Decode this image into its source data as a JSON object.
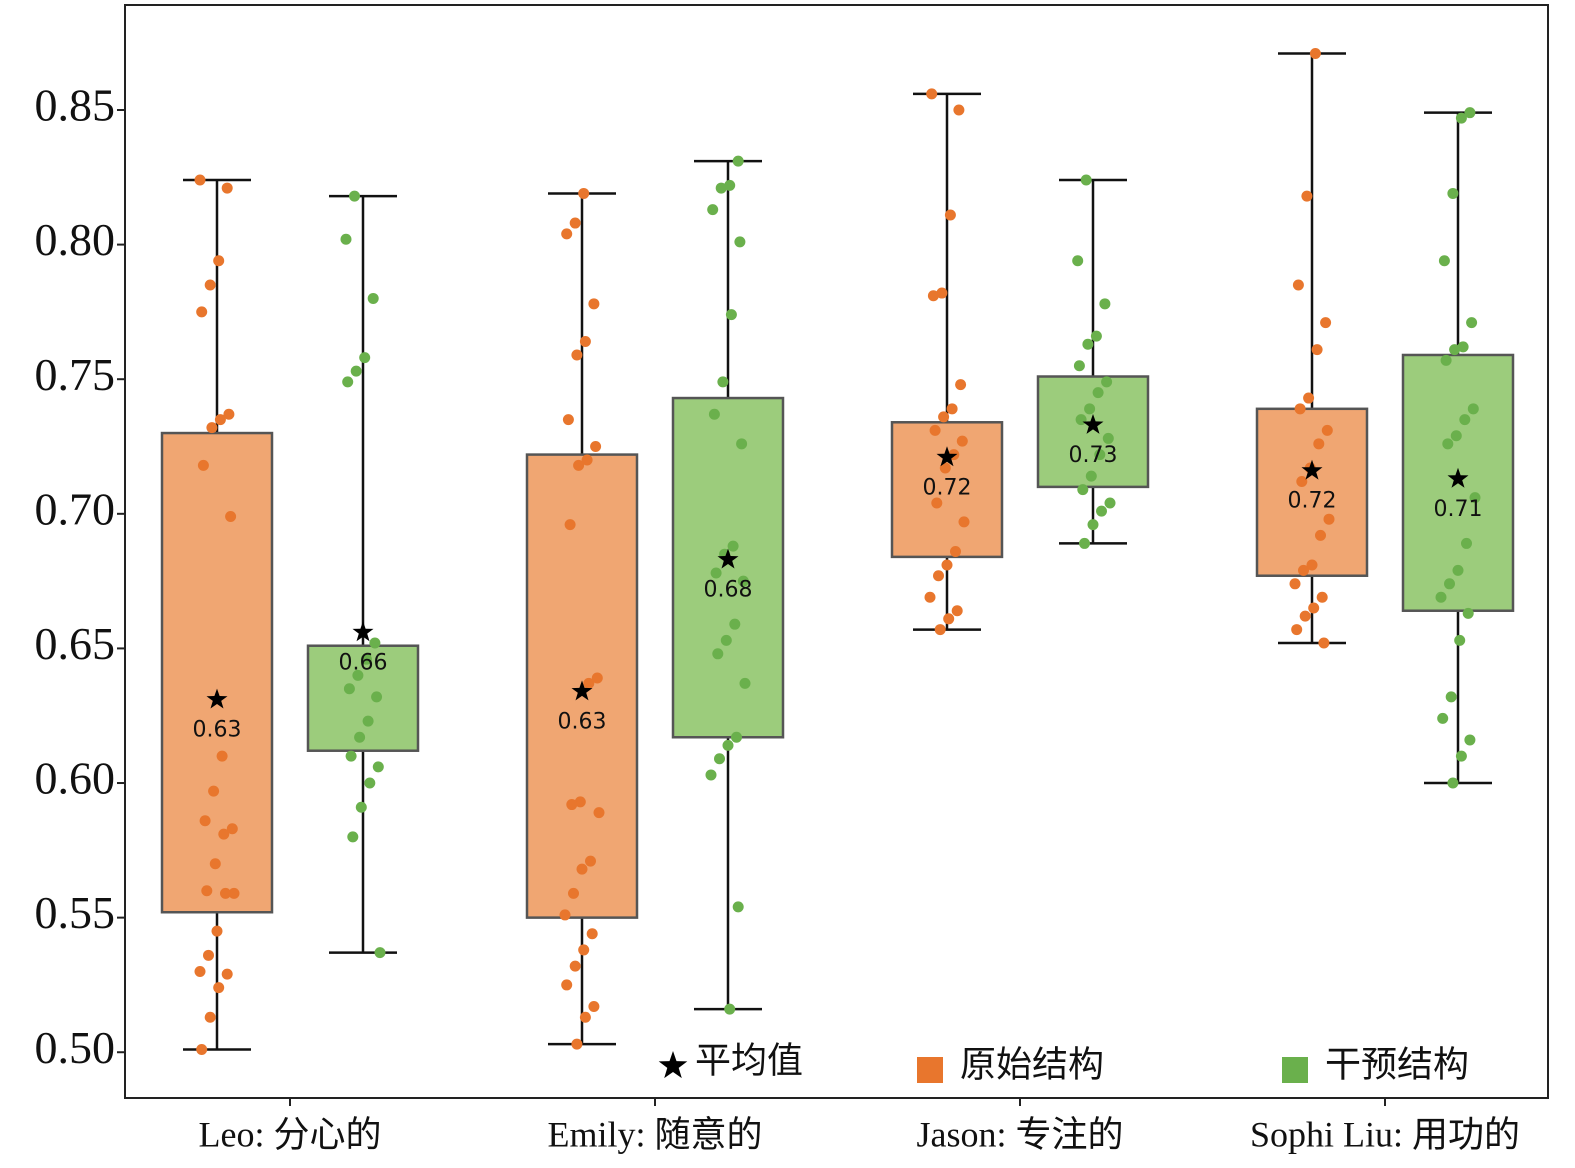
{
  "chart_data": {
    "type": "box",
    "categories": [
      "Leo: 分心的",
      "Emily: 随意的",
      "Jason: 专注的",
      "Sophi Liu: 用功的"
    ],
    "ylim": [
      0.483,
      0.889
    ],
    "yticks": [
      {
        "value": 0.5,
        "label": "0.50"
      },
      0.55,
      {
        "value": 0.6,
        "label": "0.60"
      },
      0.65,
      {
        "value": 0.7,
        "label": "0.70"
      },
      0.75,
      {
        "value": 0.8,
        "label": "0.80"
      },
      0.85
    ],
    "mean_legend": "平均值",
    "series": [
      {
        "name": "原始结构",
        "color": "#f0a672",
        "point_color": "#e8762d",
        "boxes": [
          {
            "whislo": 0.501,
            "q1": 0.552,
            "q3": 0.73,
            "whishi": 0.824,
            "mean": 0.631,
            "mean_label": "0.63",
            "points": [
              0.824,
              0.821,
              0.794,
              0.785,
              0.775,
              0.737,
              0.735,
              0.732,
              0.718,
              0.699,
              0.61,
              0.597,
              0.586,
              0.583,
              0.581,
              0.57,
              0.56,
              0.559,
              0.559,
              0.545,
              0.536,
              0.53,
              0.529,
              0.524,
              0.513,
              0.501
            ]
          },
          {
            "whislo": 0.503,
            "q1": 0.55,
            "q3": 0.722,
            "whishi": 0.819,
            "mean": 0.634,
            "mean_label": "0.63",
            "points": [
              0.819,
              0.808,
              0.804,
              0.778,
              0.764,
              0.759,
              0.735,
              0.725,
              0.72,
              0.718,
              0.696,
              0.639,
              0.637,
              0.593,
              0.592,
              0.589,
              0.571,
              0.568,
              0.559,
              0.551,
              0.544,
              0.538,
              0.532,
              0.525,
              0.517,
              0.513,
              0.503
            ]
          },
          {
            "whislo": 0.657,
            "q1": 0.684,
            "q3": 0.734,
            "whishi": 0.856,
            "mean": 0.721,
            "mean_label": "0.72",
            "points": [
              0.856,
              0.85,
              0.811,
              0.782,
              0.781,
              0.748,
              0.739,
              0.736,
              0.731,
              0.727,
              0.722,
              0.717,
              0.704,
              0.697,
              0.686,
              0.681,
              0.677,
              0.669,
              0.664,
              0.661,
              0.657
            ]
          },
          {
            "whislo": 0.652,
            "q1": 0.677,
            "q3": 0.739,
            "whishi": 0.871,
            "mean": 0.716,
            "mean_label": "0.72",
            "points": [
              0.871,
              0.818,
              0.785,
              0.771,
              0.761,
              0.743,
              0.739,
              0.731,
              0.726,
              0.717,
              0.712,
              0.698,
              0.692,
              0.681,
              0.679,
              0.674,
              0.669,
              0.665,
              0.662,
              0.657,
              0.652
            ]
          }
        ]
      },
      {
        "name": "干预结构",
        "color": "#9ccc7c",
        "point_color": "#6ab04c",
        "boxes": [
          {
            "whislo": 0.537,
            "q1": 0.612,
            "q3": 0.651,
            "whishi": 0.818,
            "mean": 0.656,
            "mean_label": "0.66",
            "points": [
              0.818,
              0.802,
              0.78,
              0.758,
              0.753,
              0.749,
              0.652,
              0.646,
              0.64,
              0.635,
              0.632,
              0.623,
              0.617,
              0.61,
              0.606,
              0.6,
              0.591,
              0.58,
              0.537
            ]
          },
          {
            "whislo": 0.516,
            "q1": 0.617,
            "q3": 0.743,
            "whishi": 0.831,
            "mean": 0.683,
            "mean_label": "0.68",
            "points": [
              0.831,
              0.822,
              0.821,
              0.813,
              0.801,
              0.774,
              0.749,
              0.737,
              0.726,
              0.688,
              0.685,
              0.678,
              0.675,
              0.659,
              0.653,
              0.648,
              0.637,
              0.617,
              0.614,
              0.609,
              0.603,
              0.554,
              0.516
            ]
          },
          {
            "whislo": 0.689,
            "q1": 0.71,
            "q3": 0.751,
            "whishi": 0.824,
            "mean": 0.733,
            "mean_label": "0.73",
            "points": [
              0.824,
              0.794,
              0.778,
              0.766,
              0.763,
              0.755,
              0.749,
              0.745,
              0.739,
              0.735,
              0.728,
              0.722,
              0.714,
              0.709,
              0.704,
              0.701,
              0.696,
              0.689
            ]
          },
          {
            "whislo": 0.6,
            "q1": 0.664,
            "q3": 0.759,
            "whishi": 0.849,
            "mean": 0.713,
            "mean_label": "0.71",
            "points": [
              0.849,
              0.847,
              0.819,
              0.794,
              0.771,
              0.762,
              0.761,
              0.757,
              0.739,
              0.735,
              0.729,
              0.726,
              0.706,
              0.689,
              0.679,
              0.674,
              0.669,
              0.663,
              0.653,
              0.632,
              0.624,
              0.616,
              0.61,
              0.6
            ]
          }
        ]
      }
    ]
  }
}
